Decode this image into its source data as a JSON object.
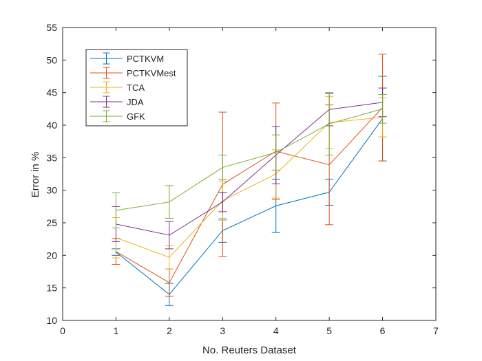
{
  "chart_data": {
    "type": "line",
    "title": "",
    "xlabel": "No. Reuters Dataset",
    "ylabel": "Error in %",
    "xlim": [
      0,
      7
    ],
    "ylim": [
      10,
      55
    ],
    "xticks": [
      0,
      1,
      2,
      3,
      4,
      5,
      6,
      7
    ],
    "yticks": [
      10,
      15,
      20,
      25,
      30,
      35,
      40,
      45,
      50,
      55
    ],
    "grid": false,
    "legend_position": "top-left",
    "x": [
      1,
      2,
      3,
      4,
      5,
      6
    ],
    "series": [
      {
        "name": "PCTKVM",
        "color": "#0072BD",
        "values": [
          20.5,
          14.0,
          23.8,
          27.6,
          29.7,
          41.0
        ],
        "errors": [
          0.5,
          1.7,
          1.8,
          4.1,
          2.0,
          6.5
        ]
      },
      {
        "name": "PCTKVMest",
        "color": "#D95319",
        "values": [
          20.6,
          15.8,
          30.9,
          36.0,
          33.9,
          42.7
        ],
        "errors": [
          2.0,
          2.1,
          11.1,
          7.4,
          9.2,
          8.2
        ]
      },
      {
        "name": "TCA",
        "color": "#EDB120",
        "values": [
          22.7,
          19.7,
          28.4,
          32.5,
          40.4,
          41.2
        ],
        "errors": [
          3.1,
          1.8,
          3.0,
          3.7,
          4.0,
          3.0
        ]
      },
      {
        "name": "JDA",
        "color": "#7E2F8E",
        "values": [
          24.8,
          23.1,
          28.2,
          35.4,
          42.4,
          43.5
        ],
        "errors": [
          2.7,
          2.1,
          1.5,
          4.4,
          2.5,
          2.2
        ]
      },
      {
        "name": "GFK",
        "color": "#77AC30",
        "values": [
          26.9,
          28.2,
          33.5,
          35.8,
          40.2,
          42.5
        ],
        "errors": [
          2.7,
          2.5,
          1.9,
          2.7,
          4.8,
          2.2
        ]
      }
    ]
  }
}
